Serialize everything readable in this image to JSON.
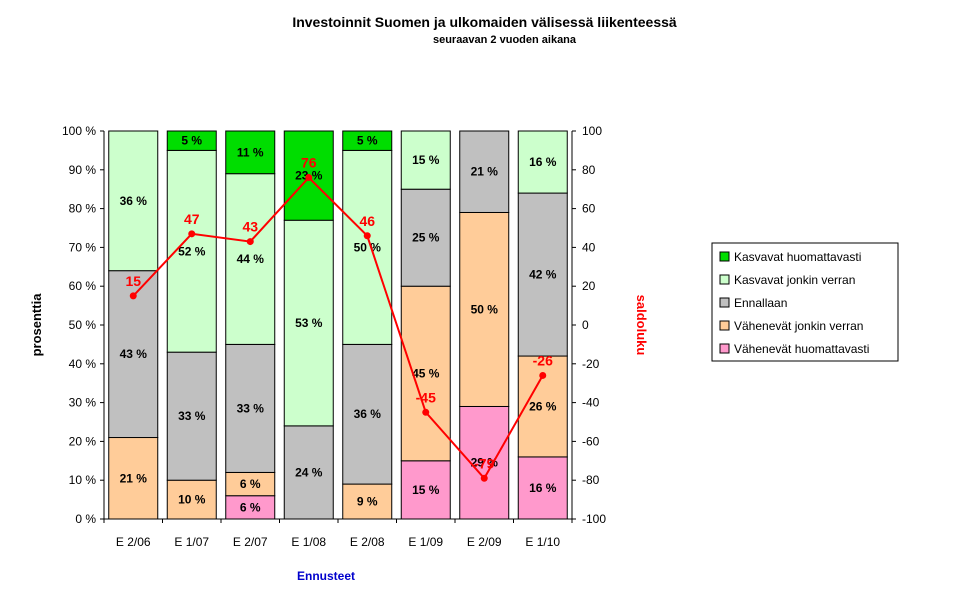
{
  "chart_data": {
    "type": "bar",
    "stacked": true,
    "title": "Investoinnit Suomen ja ulkomaiden välisessä liikenteessä",
    "subtitle": "seuraavan 2 vuoden aikana",
    "xlabel": "Ennusteet",
    "ylabel": "prosenttia",
    "y2label": "saldoluku",
    "categories": [
      "E 2/06",
      "E 1/07",
      "E 2/07",
      "E 1/08",
      "E 2/08",
      "E 1/09",
      "E 2/09",
      "E 1/10"
    ],
    "ylim": [
      0,
      100
    ],
    "y2lim": [
      -100,
      100
    ],
    "yticks": [
      "0 %",
      "10 %",
      "20 %",
      "30 %",
      "40 %",
      "50 %",
      "60 %",
      "70 %",
      "80 %",
      "90 %",
      "100 %"
    ],
    "y2ticks": [
      "-100",
      "-80",
      "-60",
      "-40",
      "-20",
      "0",
      "20",
      "40",
      "60",
      "80",
      "100"
    ],
    "series": [
      {
        "name": "Vähenevät huomattavasti",
        "color": "#ff99cc",
        "values": [
          0,
          0,
          6,
          0,
          0,
          15,
          29,
          16
        ]
      },
      {
        "name": "Vähenevät jonkin verran",
        "color": "#ffcc99",
        "values": [
          21,
          10,
          6,
          0,
          9,
          45,
          50,
          26
        ]
      },
      {
        "name": "Ennallaan",
        "color": "#c0c0c0",
        "values": [
          43,
          33,
          33,
          24,
          36,
          25,
          21,
          42
        ]
      },
      {
        "name": "Kasvavat jonkin verran",
        "color": "#ccffcc",
        "values": [
          36,
          52,
          44,
          53,
          50,
          15,
          0,
          16
        ]
      },
      {
        "name": "Kasvavat huomattavasti",
        "color": "#00dd00",
        "values": [
          0,
          5,
          11,
          23,
          5,
          0,
          0,
          0
        ]
      }
    ],
    "bar_labels": [
      [
        "",
        "",
        "6 %",
        "",
        "",
        "15 %",
        "29 %",
        "16 %"
      ],
      [
        "21 %",
        "10 %",
        "6 %",
        "",
        "9 %",
        "45 %",
        "50 %",
        "26 %"
      ],
      [
        "43 %",
        "33 %",
        "33 %",
        "24 %",
        "36 %",
        "25 %",
        "21 %",
        "42 %"
      ],
      [
        "36 %",
        "52 %",
        "44 %",
        "53 %",
        "50 %",
        "15 %",
        "",
        "16 %"
      ],
      [
        "",
        "5 %",
        "11 %",
        "23 %",
        "5 %",
        "",
        "",
        ""
      ]
    ],
    "line": {
      "color": "#ff0000",
      "values": [
        15,
        47,
        43,
        76,
        46,
        -45,
        -79,
        -26
      ],
      "labels": [
        "15",
        "47",
        "43",
        "76",
        "46",
        "-45",
        "-79",
        "-26"
      ]
    },
    "legend": {
      "position": "right",
      "items": [
        {
          "name": "Kasvavat huomattavasti",
          "color": "#00dd00"
        },
        {
          "name": "Kasvavat jonkin verran",
          "color": "#ccffcc"
        },
        {
          "name": "Ennallaan",
          "color": "#c0c0c0"
        },
        {
          "name": "Vähenevät jonkin verran",
          "color": "#ffcc99"
        },
        {
          "name": "Vähenevät huomattavasti",
          "color": "#ff99cc"
        }
      ]
    },
    "grid": false
  }
}
